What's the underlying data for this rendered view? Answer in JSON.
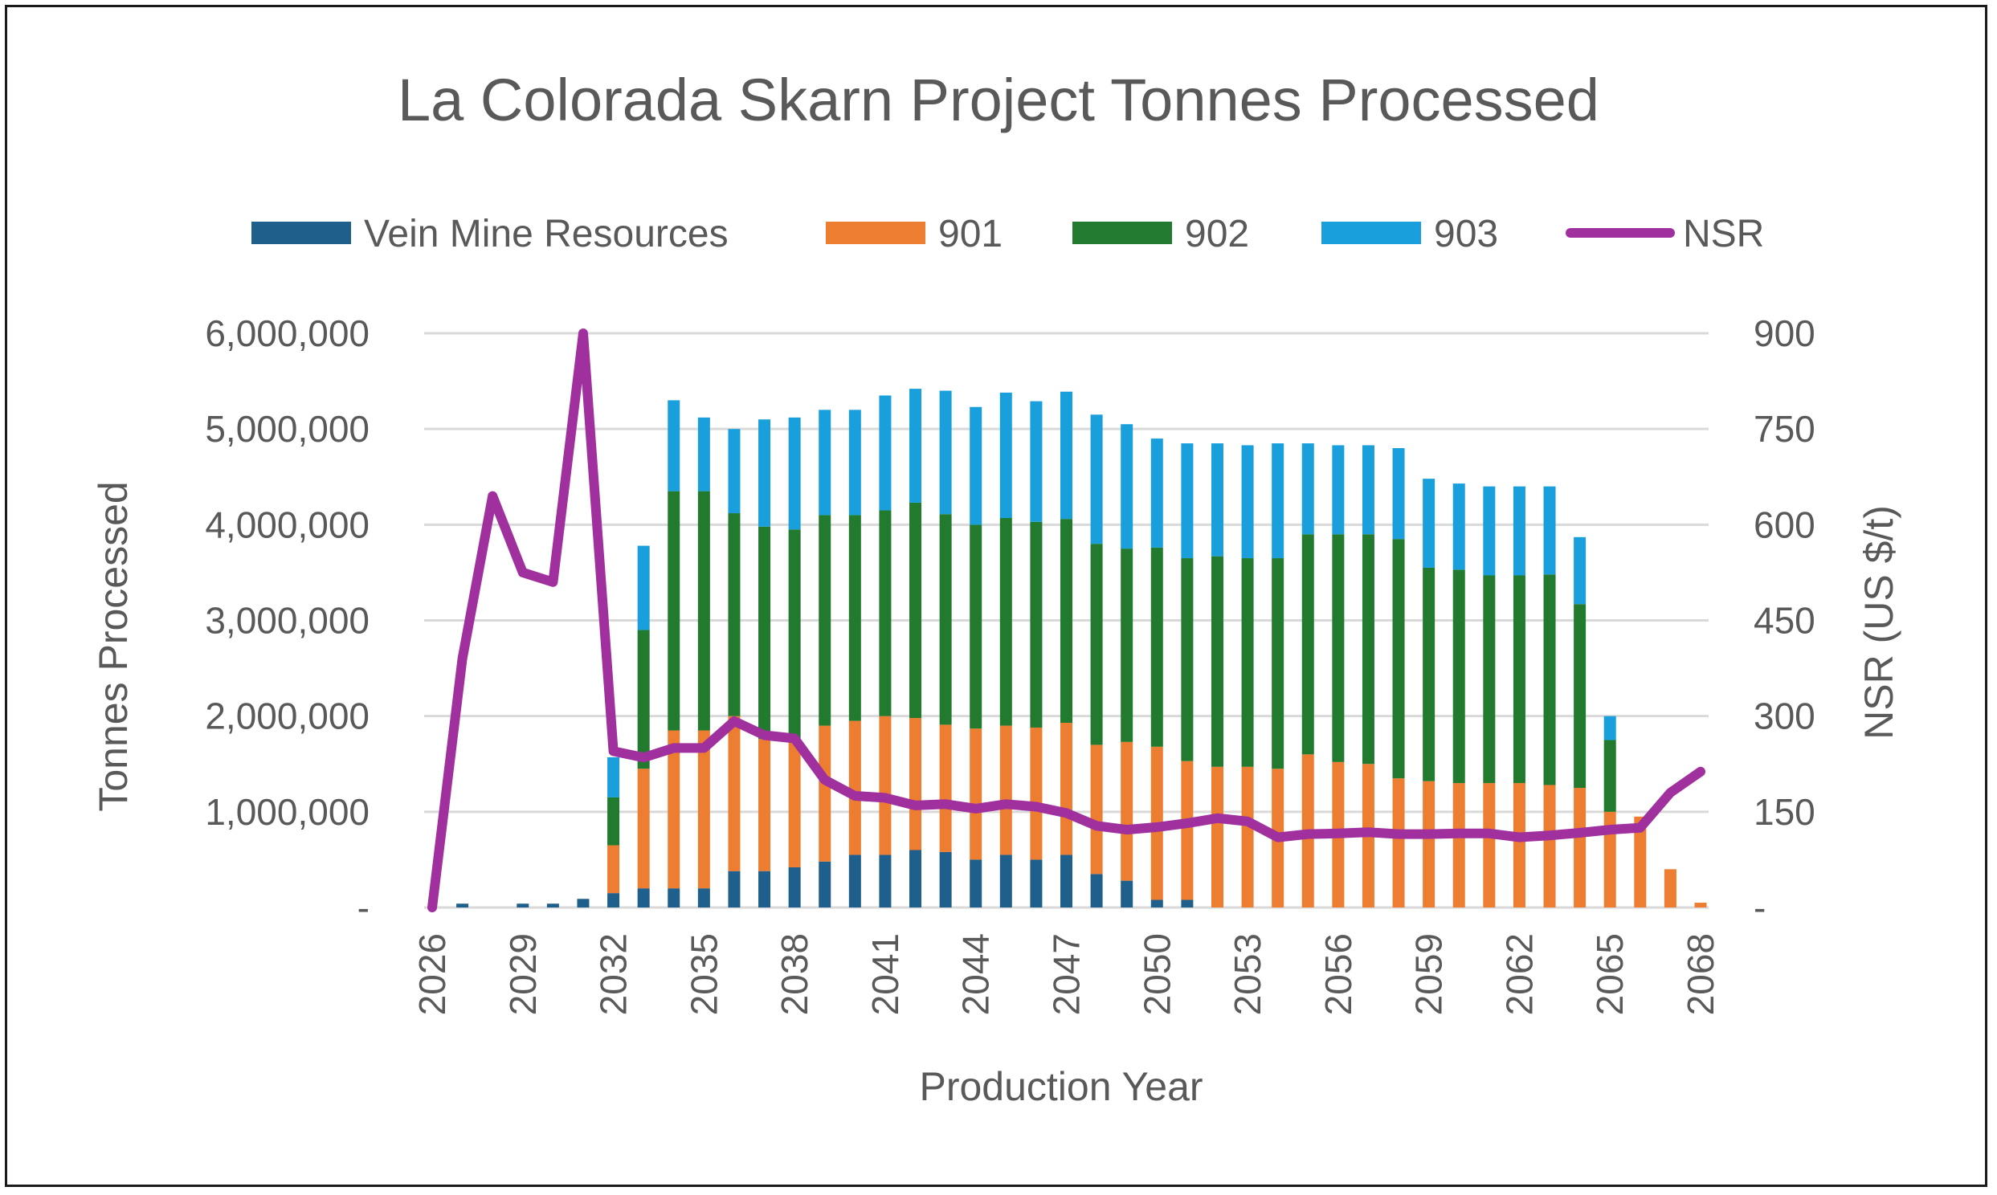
{
  "chart_data": {
    "type": "bar",
    "stacked": true,
    "title": "La Colorada Skarn Project Tonnes Processed",
    "xlabel": "Production Year",
    "ylabel": "Tonnes Processed",
    "y2label": "NSR (US $/t)",
    "ylim": [
      0,
      6000000
    ],
    "y2lim": [
      0,
      900
    ],
    "yticks": [
      "-",
      "1,000,000",
      "2,000,000",
      "3,000,000",
      "4,000,000",
      "5,000,000",
      "6,000,000"
    ],
    "y2ticks": [
      "-",
      "150",
      "300",
      "450",
      "600",
      "750",
      "900"
    ],
    "xtick_labels": [
      "2026",
      "2029",
      "2032",
      "2035",
      "2038",
      "2041",
      "2044",
      "2047",
      "2050",
      "2053",
      "2056",
      "2059",
      "2062",
      "2065",
      "2068"
    ],
    "grid": true,
    "legend_position": "top",
    "categories": [
      2026,
      2027,
      2028,
      2029,
      2030,
      2031,
      2032,
      2033,
      2034,
      2035,
      2036,
      2037,
      2038,
      2039,
      2040,
      2041,
      2042,
      2043,
      2044,
      2045,
      2046,
      2047,
      2048,
      2049,
      2050,
      2051,
      2052,
      2053,
      2054,
      2055,
      2056,
      2057,
      2058,
      2059,
      2060,
      2061,
      2062,
      2063,
      2064,
      2065,
      2066,
      2067,
      2068
    ],
    "series": [
      {
        "name": "Vein Mine Resources",
        "color": "#1f5f8b",
        "values": [
          0,
          40000,
          0,
          40000,
          40000,
          90000,
          150000,
          200000,
          200000,
          200000,
          380000,
          380000,
          420000,
          480000,
          550000,
          550000,
          600000,
          580000,
          500000,
          550000,
          500000,
          550000,
          350000,
          280000,
          80000,
          80000,
          0,
          0,
          0,
          0,
          0,
          0,
          0,
          0,
          0,
          0,
          0,
          0,
          0,
          0,
          0,
          0,
          0
        ]
      },
      {
        "name": "901",
        "color": "#ed7d31",
        "values": [
          0,
          0,
          0,
          0,
          0,
          0,
          500000,
          1250000,
          1650000,
          1650000,
          1620000,
          1380000,
          1350000,
          1420000,
          1400000,
          1450000,
          1380000,
          1330000,
          1370000,
          1350000,
          1380000,
          1380000,
          1350000,
          1450000,
          1600000,
          1450000,
          1470000,
          1470000,
          1450000,
          1600000,
          1520000,
          1500000,
          1350000,
          1320000,
          1300000,
          1300000,
          1300000,
          1280000,
          1250000,
          1000000,
          950000,
          400000,
          50000
        ]
      },
      {
        "name": "902",
        "color": "#217a2e",
        "values": [
          0,
          0,
          0,
          0,
          0,
          0,
          500000,
          1450000,
          2500000,
          2500000,
          2120000,
          2220000,
          2180000,
          2200000,
          2150000,
          2150000,
          2250000,
          2200000,
          2130000,
          2170000,
          2150000,
          2130000,
          2100000,
          2020000,
          2080000,
          2120000,
          2200000,
          2180000,
          2200000,
          2300000,
          2380000,
          2400000,
          2500000,
          2230000,
          2230000,
          2170000,
          2170000,
          2200000,
          1920000,
          750000,
          0,
          0,
          0
        ]
      },
      {
        "name": "903",
        "color": "#19a0dc",
        "values": [
          0,
          0,
          0,
          0,
          0,
          0,
          420000,
          880000,
          950000,
          770000,
          880000,
          1120000,
          1170000,
          1100000,
          1100000,
          1200000,
          1190000,
          1290000,
          1230000,
          1310000,
          1260000,
          1330000,
          1350000,
          1300000,
          1140000,
          1200000,
          1180000,
          1180000,
          1200000,
          950000,
          930000,
          930000,
          950000,
          930000,
          900000,
          930000,
          930000,
          920000,
          700000,
          250000,
          0,
          0,
          0
        ]
      }
    ],
    "line_series": {
      "name": "NSR",
      "color": "#a0309e",
      "axis": "right",
      "values": [
        0,
        390,
        645,
        525,
        510,
        900,
        245,
        235,
        250,
        250,
        292,
        270,
        265,
        200,
        175,
        172,
        160,
        162,
        155,
        162,
        158,
        148,
        128,
        122,
        126,
        132,
        140,
        135,
        110,
        115,
        116,
        118,
        115,
        115,
        116,
        116,
        110,
        113,
        117,
        122,
        125,
        180,
        213
      ]
    }
  }
}
